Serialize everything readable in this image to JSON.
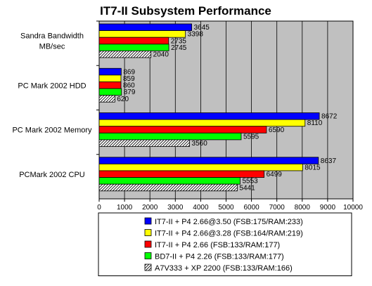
{
  "chart_data": {
    "type": "bar",
    "orientation": "horizontal",
    "title": "IT7-II Subsystem Performance",
    "categories": [
      [
        "Sandra Bandwidth",
        "MB/sec"
      ],
      [
        "PC Mark 2002 HDD"
      ],
      [
        "PC Mark 2002 Memory"
      ],
      [
        "PCMark 2002 CPU"
      ]
    ],
    "series": [
      {
        "name": "IT7-II + P4 2.66@3.50 (FSB:175/RAM:233)",
        "color": "#0000ff",
        "values": [
          3645,
          869,
          8672,
          8637
        ]
      },
      {
        "name": "IT7-II + P4 2.66@3.28 (FSB:164/RAM:219)",
        "color": "#ffff00",
        "values": [
          3398,
          859,
          8110,
          8015
        ]
      },
      {
        "name": "IT7-II + P4 2.66 (FSB:133/RAM:177)",
        "color": "#ff0000",
        "values": [
          2735,
          860,
          6590,
          6499
        ]
      },
      {
        "name": "BD7-II + P4 2.26 (FSB:133/RAM:177)",
        "color": "#00ff00",
        "values": [
          2745,
          879,
          5595,
          5553
        ]
      },
      {
        "name": "A7V333 + XP 2200 (FSB:133/RAM:166)",
        "color": "#ffffff",
        "pattern": "hatch",
        "values": [
          2040,
          620,
          3560,
          5441
        ]
      }
    ],
    "xlim": [
      0,
      10000
    ],
    "xticks": [
      0,
      1000,
      2000,
      3000,
      4000,
      5000,
      6000,
      7000,
      8000,
      9000,
      10000
    ],
    "plot_background": "#c0c0c0",
    "grid": "vertical",
    "legend_position": "bottom"
  }
}
